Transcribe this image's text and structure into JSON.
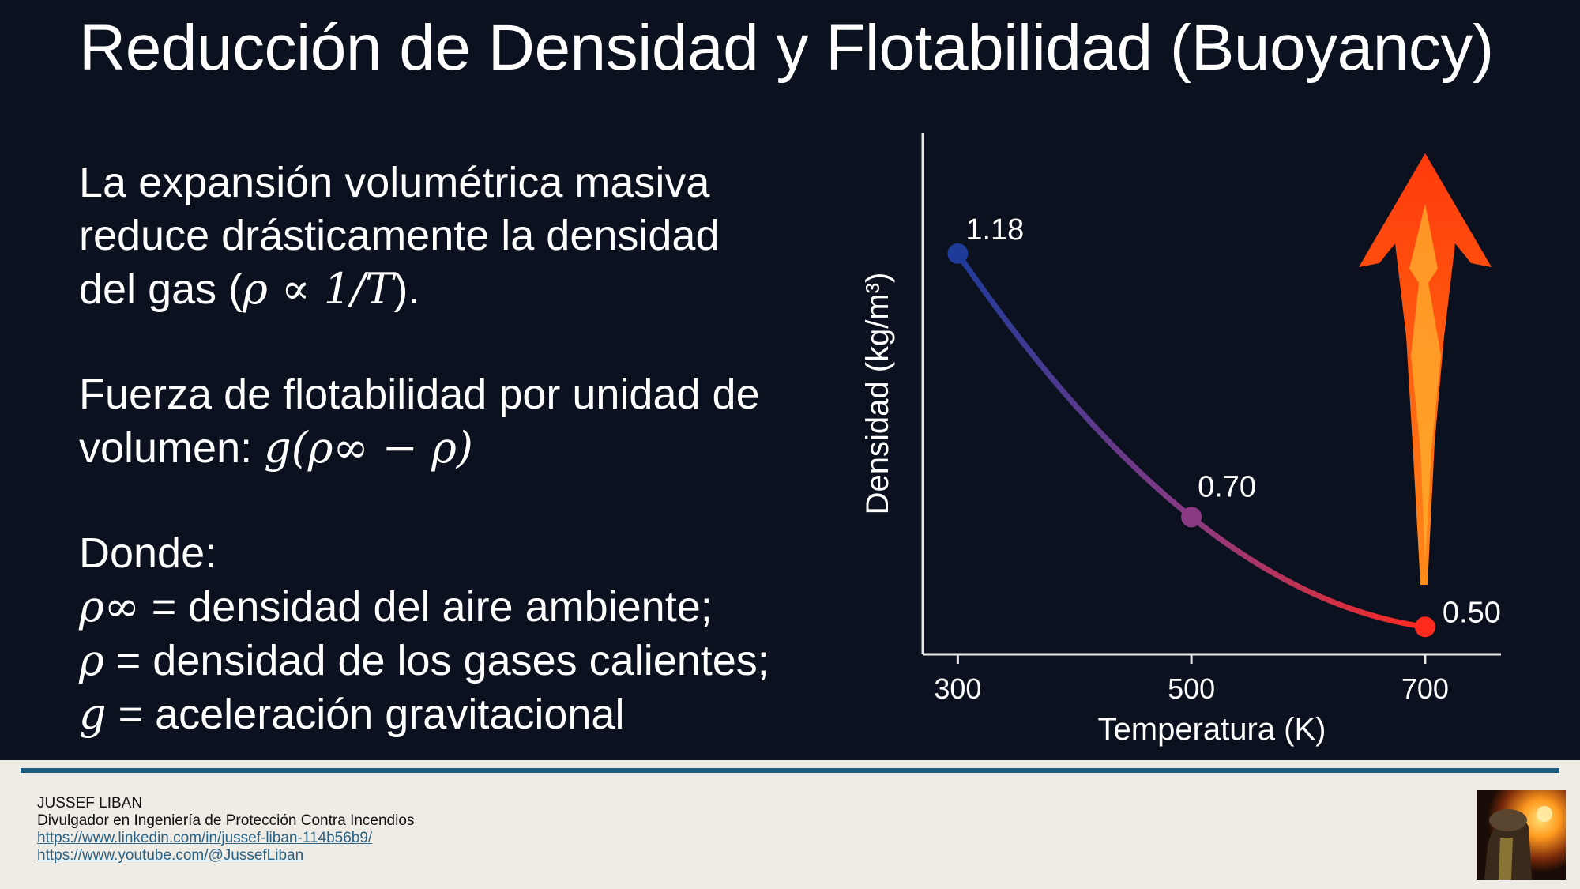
{
  "slide": {
    "title": "Reducción de Densidad y Flotabilidad (Buoyancy)",
    "paragraph1": {
      "lines": [
        "La expansión volumétrica masiva",
        "reduce drásticamente la densidad"
      ],
      "line3_prefix": "del gas (",
      "formula": "ρ ∝ 1/T",
      "line3_suffix": ")."
    },
    "paragraph2": {
      "line1": "Fuerza de flotabilidad por unidad de",
      "line2_prefix": "volumen: ",
      "formula": "g(ρ∞ − ρ)"
    },
    "paragraph3": {
      "heading": "Donde:",
      "defs": [
        {
          "symbol": "ρ∞",
          "text": " = densidad del aire ambiente;"
        },
        {
          "symbol": "ρ",
          "text": " = densidad de los gases calientes;"
        },
        {
          "symbol": "g",
          "text": " = aceleración gravitacional"
        }
      ]
    }
  },
  "chart_data": {
    "type": "line",
    "x": [
      300,
      500,
      700
    ],
    "y": [
      1.18,
      0.7,
      0.5
    ],
    "point_labels": [
      "1.18",
      "0.70",
      "0.50"
    ],
    "xlabel": "Temperatura (K)",
    "ylabel": "Densidad (kg/m³)",
    "xticks": [
      "300",
      "500",
      "700"
    ],
    "xlim": [
      270,
      765
    ],
    "ylim": [
      0.45,
      1.4
    ],
    "grid": false,
    "colors": {
      "low_temp": "#1f3b9a",
      "mid_temp": "#8a3a82",
      "high_temp": "#ff2a1e",
      "axis": "#e8e8e8"
    }
  },
  "footer": {
    "name": "JUSSEF LIBAN",
    "role": "Divulgador en Ingeniería de Protección Contra Incendios",
    "linkedin": "https://www.linkedin.com/in/jussef-liban-114b56b9/",
    "youtube": "https://www.youtube.com/@JussefLiban",
    "colors": {
      "rule": "#1c5d80",
      "link": "#2b6385",
      "background": "#efebe5"
    }
  }
}
